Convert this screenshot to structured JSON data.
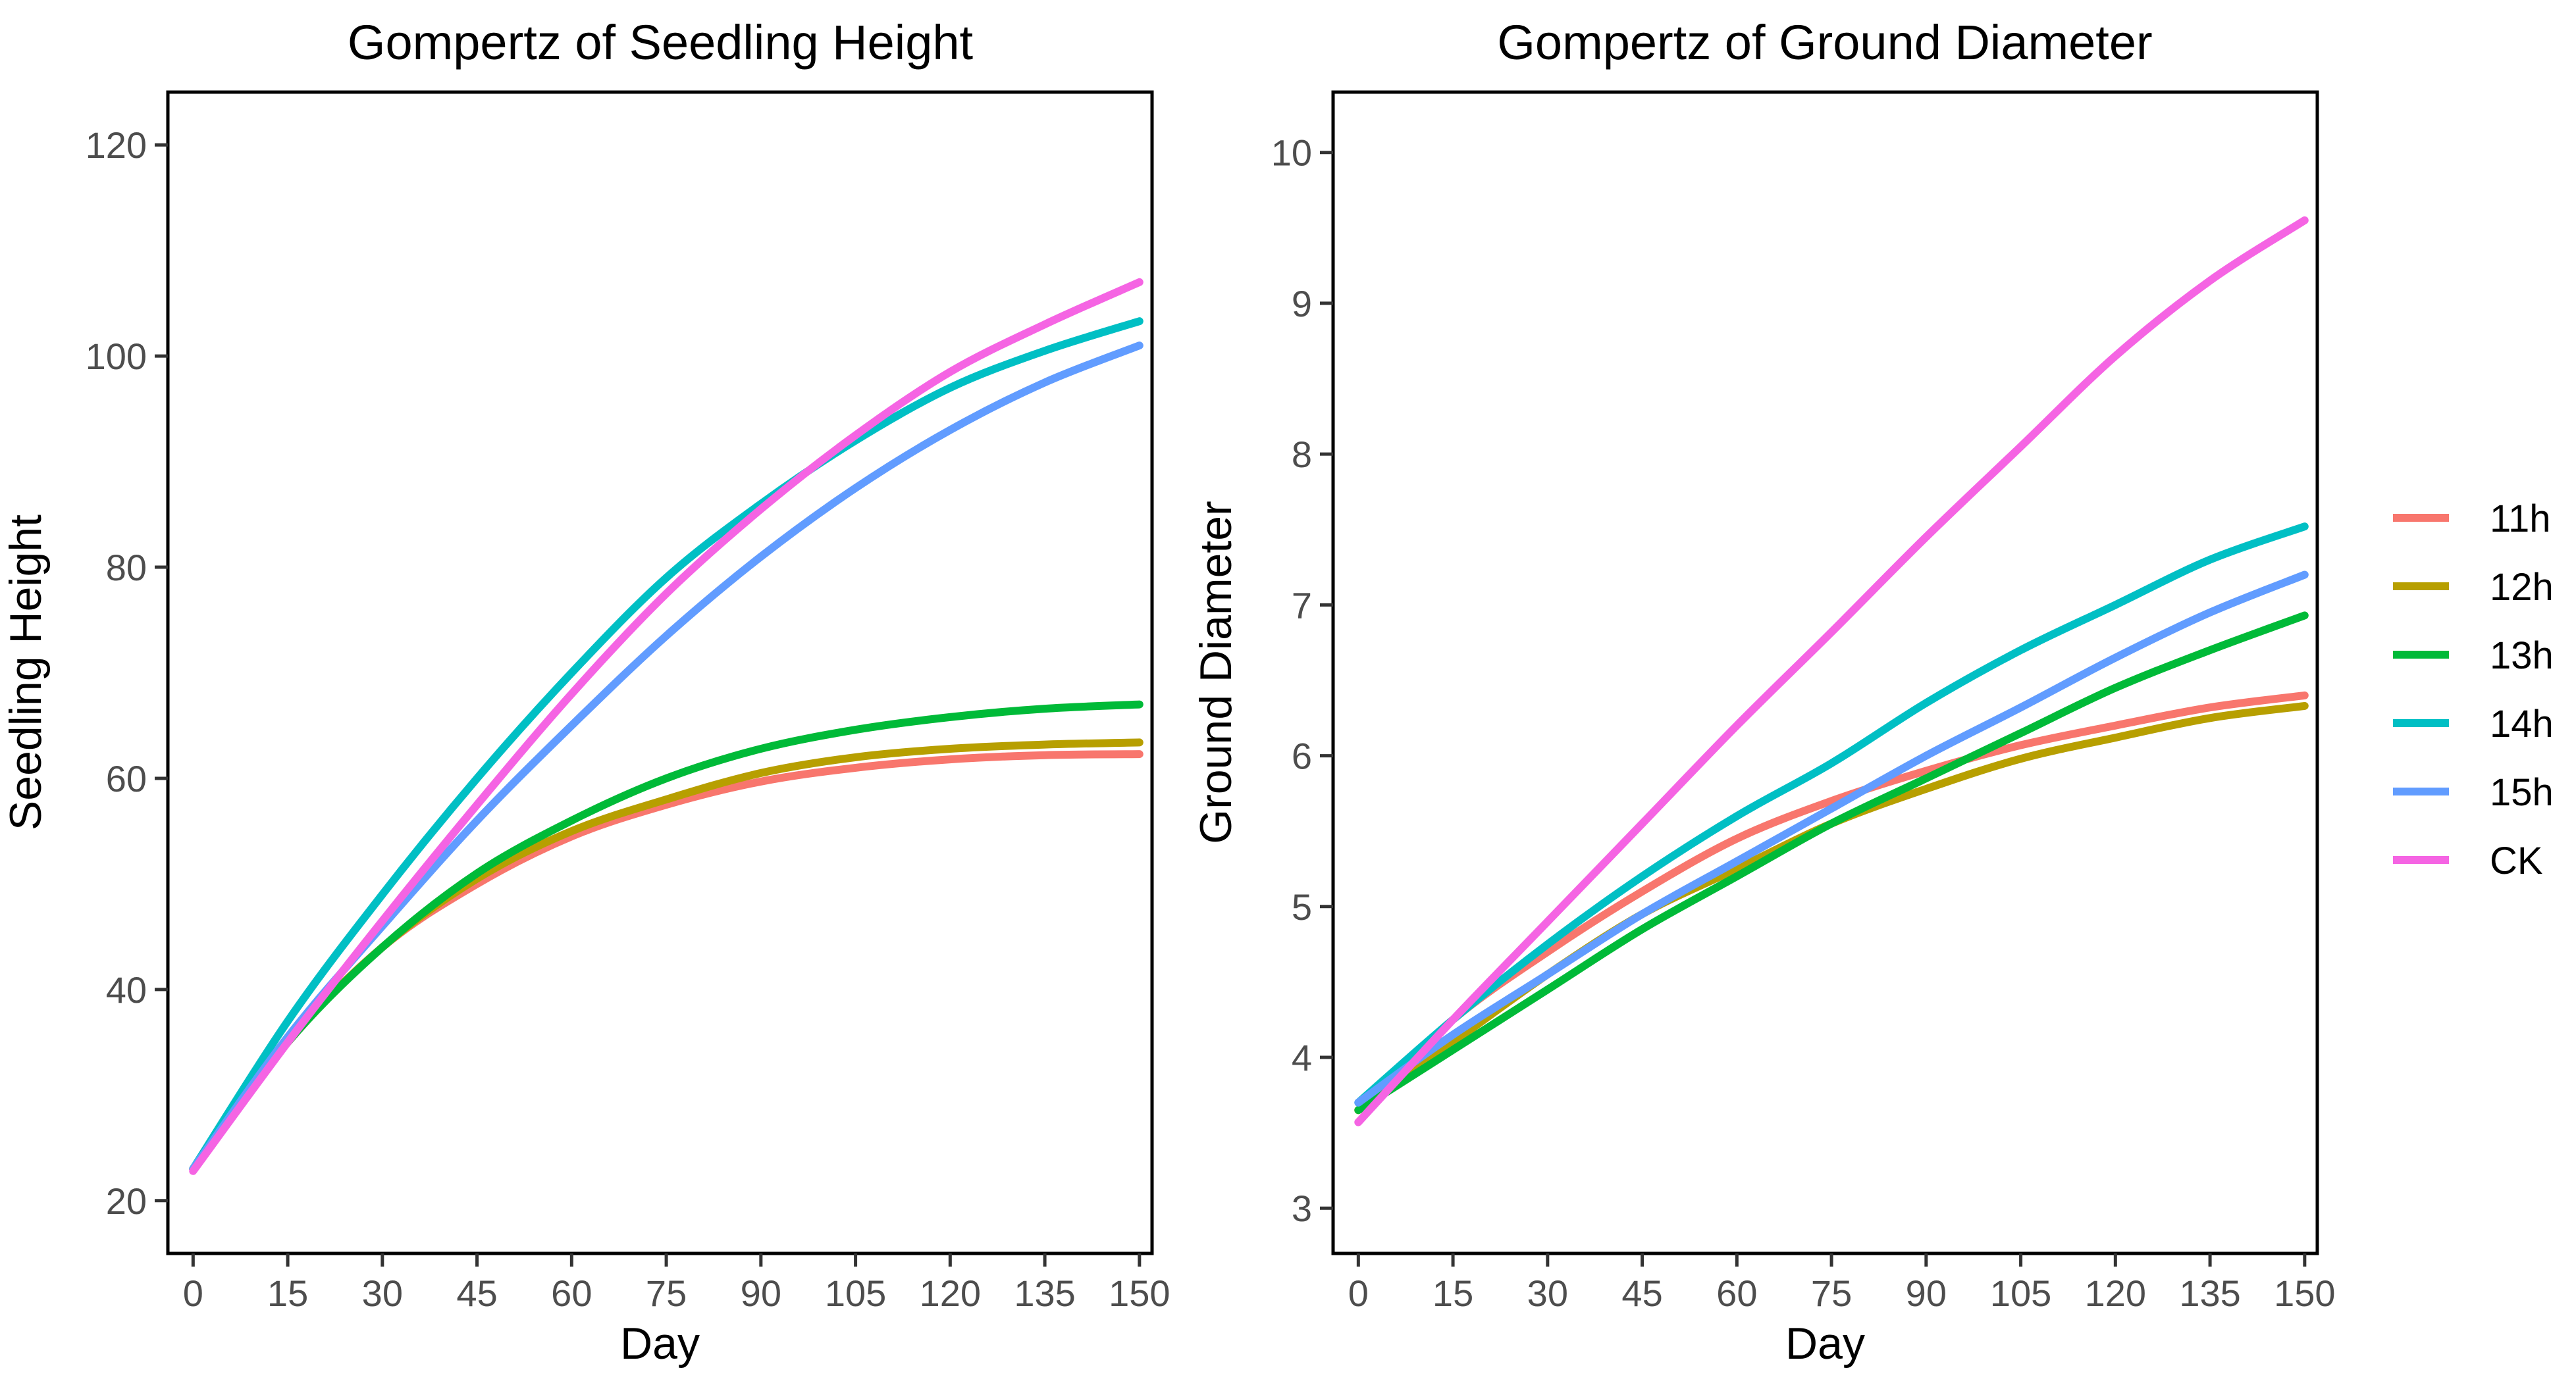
{
  "chart_data": [
    {
      "type": "line",
      "title": "Gompertz of Seedling Height",
      "xlabel": "Day",
      "ylabel": "Seedling Height",
      "xlim": [
        -4,
        152
      ],
      "ylim": [
        15,
        125
      ],
      "xticks": [
        0,
        15,
        30,
        45,
        60,
        75,
        90,
        105,
        120,
        135,
        150
      ],
      "yticks": [
        20,
        40,
        60,
        80,
        100,
        120
      ],
      "x": [
        0,
        15,
        30,
        45,
        60,
        75,
        90,
        105,
        120,
        135,
        150
      ],
      "series": [
        {
          "name": "11h",
          "values": [
            23.0,
            35.0,
            44.0,
            50.0,
            54.5,
            57.5,
            59.7,
            61.0,
            61.8,
            62.2,
            62.3
          ]
        },
        {
          "name": "12h",
          "values": [
            23.0,
            35.0,
            44.0,
            50.5,
            55.0,
            58.0,
            60.5,
            62.0,
            62.8,
            63.2,
            63.4
          ]
        },
        {
          "name": "13h",
          "values": [
            23.0,
            35.0,
            44.0,
            51.0,
            56.0,
            60.0,
            62.8,
            64.6,
            65.8,
            66.6,
            67.0
          ]
        },
        {
          "name": "14h",
          "values": [
            23.0,
            37.0,
            49.0,
            60.0,
            70.0,
            79.0,
            86.0,
            92.0,
            97.0,
            100.5,
            103.3
          ]
        },
        {
          "name": "15h",
          "values": [
            23.0,
            35.5,
            46.0,
            56.0,
            65.0,
            73.5,
            81.0,
            87.5,
            93.0,
            97.5,
            101.0
          ]
        },
        {
          "name": "CK",
          "values": [
            22.8,
            35.0,
            46.5,
            57.5,
            68.0,
            77.5,
            85.5,
            92.5,
            98.5,
            103.0,
            107.0
          ]
        }
      ]
    },
    {
      "type": "line",
      "title": "Gompertz of Ground Diameter",
      "xlabel": "Day",
      "ylabel": "Ground Diameter",
      "xlim": [
        -4,
        152
      ],
      "ylim": [
        2.7,
        10.4
      ],
      "xticks": [
        0,
        15,
        30,
        45,
        60,
        75,
        90,
        105,
        120,
        135,
        150
      ],
      "yticks": [
        3,
        4,
        5,
        6,
        7,
        8,
        9,
        10
      ],
      "x": [
        0,
        15,
        30,
        45,
        60,
        75,
        90,
        105,
        120,
        135,
        150
      ],
      "series": [
        {
          "name": "11h",
          "values": [
            3.65,
            4.25,
            4.7,
            5.1,
            5.45,
            5.7,
            5.9,
            6.07,
            6.2,
            6.32,
            6.4
          ]
        },
        {
          "name": "12h",
          "values": [
            3.65,
            4.1,
            4.55,
            4.95,
            5.25,
            5.55,
            5.78,
            5.98,
            6.12,
            6.25,
            6.33
          ]
        },
        {
          "name": "13h",
          "values": [
            3.65,
            4.05,
            4.45,
            4.85,
            5.2,
            5.55,
            5.85,
            6.15,
            6.45,
            6.7,
            6.93
          ]
        },
        {
          "name": "14h",
          "values": [
            3.7,
            4.25,
            4.75,
            5.2,
            5.6,
            5.95,
            6.35,
            6.7,
            7.0,
            7.3,
            7.52
          ]
        },
        {
          "name": "15h",
          "values": [
            3.7,
            4.15,
            4.55,
            4.95,
            5.3,
            5.65,
            6.0,
            6.32,
            6.65,
            6.95,
            7.2
          ]
        },
        {
          "name": "CK",
          "values": [
            3.57,
            4.25,
            4.9,
            5.55,
            6.2,
            6.82,
            7.45,
            8.05,
            8.65,
            9.15,
            9.55
          ]
        }
      ]
    }
  ],
  "legend": {
    "entries": [
      {
        "label": "11h",
        "color": "#F8766D"
      },
      {
        "label": "12h",
        "color": "#B79F00"
      },
      {
        "label": "13h",
        "color": "#00BA38"
      },
      {
        "label": "14h",
        "color": "#00BFC4"
      },
      {
        "label": "15h",
        "color": "#619CFF"
      },
      {
        "label": "CK",
        "color": "#F564E3"
      }
    ]
  }
}
